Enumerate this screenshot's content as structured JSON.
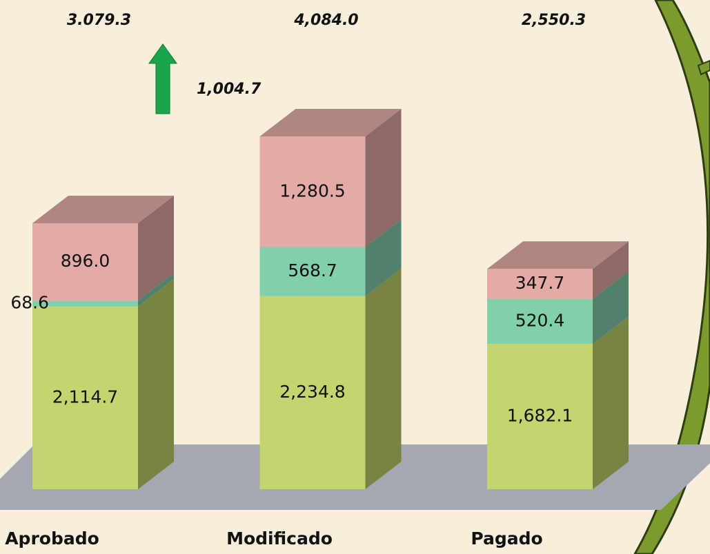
{
  "chart_data": {
    "type": "bar",
    "stacked": true,
    "categories": [
      "Aprobado",
      "Modificado",
      "Pagado"
    ],
    "series": [
      {
        "color": "#c3d56e",
        "values": [
          2114.7,
          2234.8,
          1682.1
        ],
        "value_labels": [
          "2,114.7",
          "2,234.8",
          "1,682.1"
        ]
      },
      {
        "color": "#82cfac",
        "values": [
          68.6,
          568.7,
          520.4
        ],
        "value_labels": [
          "68.6",
          "568.7",
          "520.4"
        ]
      },
      {
        "color": "#e3aaa6",
        "values": [
          896.0,
          1280.5,
          347.7
        ],
        "value_labels": [
          "896.0",
          "1,280.5",
          "347.7"
        ]
      }
    ],
    "totals": {
      "values": [
        3079.3,
        4084.0,
        2550.3
      ],
      "value_labels": [
        "3.079.3",
        "4,084.0",
        "2,550.3"
      ]
    },
    "increase": {
      "value": 1004.7,
      "label": "1,004.7"
    }
  }
}
